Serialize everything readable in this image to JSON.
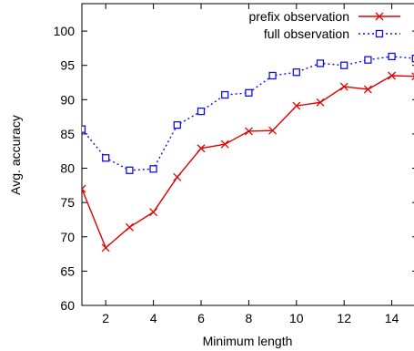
{
  "chart_data": {
    "type": "line",
    "title": "",
    "xlabel": "Minimum length",
    "ylabel": "Avg. accuracy",
    "xlim": [
      1,
      15
    ],
    "ylim": [
      60,
      104
    ],
    "xticks": [
      2,
      4,
      6,
      8,
      10,
      12,
      14
    ],
    "yticks": [
      60,
      65,
      70,
      75,
      80,
      85,
      90,
      95,
      100
    ],
    "grid": false,
    "legend_position": "top-right",
    "series": [
      {
        "name": "prefix observation",
        "color": "#e00000",
        "line_style": "solid",
        "marker": "x",
        "x": [
          1,
          2,
          3,
          4,
          5,
          6,
          7,
          8,
          9,
          10,
          11,
          12,
          13,
          14,
          15
        ],
        "y": [
          77,
          68.4,
          71.4,
          73.6,
          78.7,
          82.9,
          83.5,
          85.4,
          85.5,
          89.1,
          89.6,
          91.9,
          91.5,
          93.5,
          93.4
        ]
      },
      {
        "name": "full observation",
        "color": "#1010e0",
        "line_style": "dotted",
        "marker": "square",
        "x": [
          1,
          2,
          3,
          4,
          5,
          6,
          7,
          8,
          9,
          10,
          11,
          12,
          13,
          14,
          15
        ],
        "y": [
          85.7,
          81.5,
          79.7,
          79.9,
          86.3,
          88.3,
          90.7,
          91,
          93.5,
          94,
          95.3,
          95,
          95.8,
          96.3,
          96
        ]
      }
    ]
  }
}
